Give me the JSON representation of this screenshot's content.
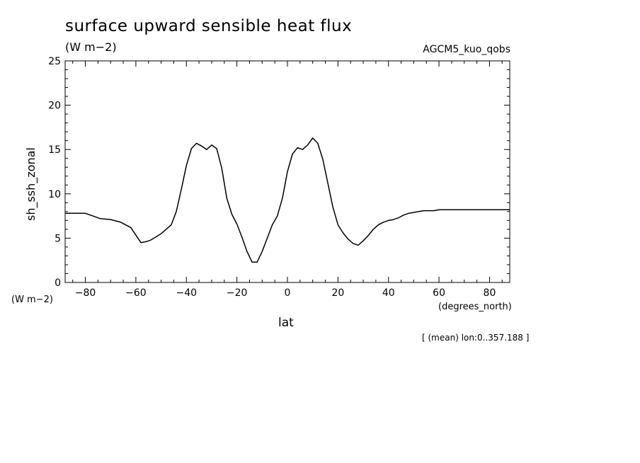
{
  "chart_data": {
    "type": "line",
    "title": "surface upward sensible heat flux",
    "units": "(W m−2)",
    "model_label": "AGCM5_kuo_qobs",
    "ylabel": "sh_ssh_zonal",
    "y_units": "(W m−2)",
    "xlabel": "lat",
    "x_units": "(degrees_north)",
    "footnote": "[ (mean) lon:0..357.188 ]",
    "xlim": [
      -88,
      88
    ],
    "ylim": [
      0,
      25
    ],
    "xticks": [
      -80,
      -60,
      -40,
      -20,
      0,
      20,
      40,
      60,
      80
    ],
    "xtick_labels": [
      "−80",
      "−60",
      "−40",
      "−20",
      "0",
      "20",
      "40",
      "60",
      "80"
    ],
    "yticks": [
      0,
      5,
      10,
      15,
      20,
      25
    ],
    "ytick_labels": [
      "0",
      "5",
      "10",
      "15",
      "20",
      "25"
    ],
    "series": [
      {
        "x": [
          -88,
          -80,
          -78,
          -74,
          -70,
          -66,
          -62,
          -58,
          -56,
          -54,
          -50,
          -48,
          -46,
          -44,
          -42,
          -40,
          -38,
          -36,
          -34,
          -32,
          -30,
          -28,
          -26,
          -24,
          -22,
          -20,
          -18,
          -16,
          -14,
          -12,
          -10,
          -8,
          -6,
          -4,
          -2,
          0,
          2,
          4,
          6,
          8,
          10,
          12,
          14,
          16,
          18,
          20,
          22,
          24,
          26,
          28,
          30,
          32,
          34,
          36,
          38,
          40,
          42,
          44,
          46,
          48,
          50,
          52,
          54,
          56,
          58,
          60,
          62,
          64,
          66,
          68,
          70,
          72,
          74,
          76,
          78,
          80,
          82,
          84,
          86,
          88
        ],
        "y": [
          7.8,
          7.8,
          7.6,
          7.2,
          7.1,
          6.8,
          6.2,
          4.5,
          4.6,
          4.8,
          5.5,
          6.0,
          6.5,
          8.0,
          10.5,
          13.2,
          15.1,
          15.7,
          15.4,
          15.0,
          15.5,
          15.1,
          12.9,
          9.5,
          7.7,
          6.6,
          5.1,
          3.5,
          2.3,
          2.3,
          3.5,
          5.0,
          6.5,
          7.5,
          9.5,
          12.5,
          14.5,
          15.2,
          15.0,
          15.5,
          16.3,
          15.7,
          13.9,
          11.2,
          8.5,
          6.5,
          5.6,
          4.9,
          4.4,
          4.2,
          4.7,
          5.3,
          6.0,
          6.5,
          6.8,
          7.0,
          7.1,
          7.3,
          7.6,
          7.8,
          7.9,
          8.0,
          8.1,
          8.1,
          8.1,
          8.2,
          8.2,
          8.2,
          8.2,
          8.2,
          8.2,
          8.2,
          8.2,
          8.2,
          8.2,
          8.2,
          8.2,
          8.2,
          8.2,
          8.2
        ]
      }
    ]
  }
}
